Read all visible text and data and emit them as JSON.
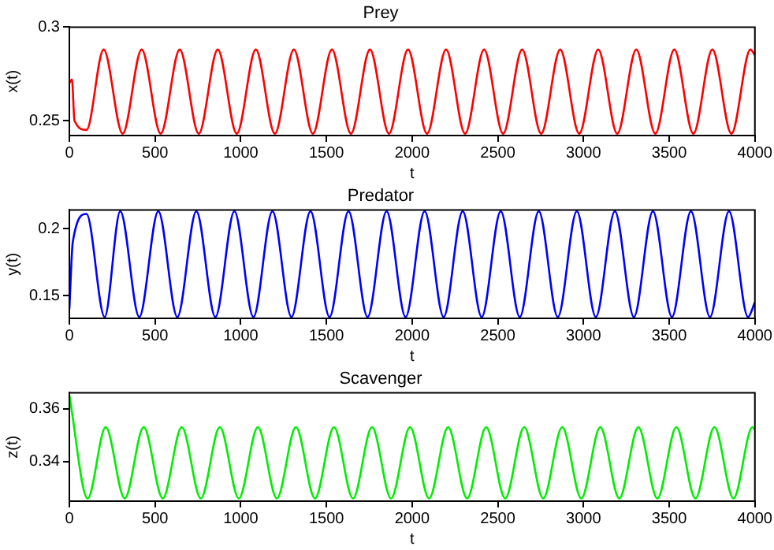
{
  "chart_data": [
    {
      "type": "line",
      "title": "Prey",
      "xlabel": "t",
      "ylabel": "x(t)",
      "marker": "none",
      "xlim": [
        0,
        4000
      ],
      "xticks": [
        0,
        500,
        1000,
        1500,
        2000,
        2500,
        3000,
        3500,
        4000
      ],
      "ylim": [
        0.242,
        0.3
      ],
      "yticks": [
        0.25,
        0.3
      ],
      "x": [
        0,
        15,
        30,
        100,
        200,
        311,
        422,
        533,
        644,
        755,
        866,
        977,
        1088,
        1199,
        1310,
        1421,
        1532,
        1643,
        1754,
        1865,
        1976,
        2087,
        2198,
        2309,
        2420,
        2531,
        2642,
        2753,
        2864,
        2975,
        3086,
        3197,
        3308,
        3419,
        3530,
        3641,
        3752,
        3863,
        3974,
        4000
      ],
      "series": [
        {
          "color": "#ff0000",
          "values": [
            0.27,
            0.272,
            0.25,
            0.245,
            0.288,
            0.243,
            0.288,
            0.243,
            0.288,
            0.243,
            0.288,
            0.243,
            0.288,
            0.243,
            0.288,
            0.243,
            0.288,
            0.243,
            0.288,
            0.243,
            0.288,
            0.243,
            0.288,
            0.243,
            0.288,
            0.243,
            0.288,
            0.243,
            0.288,
            0.243,
            0.288,
            0.243,
            0.288,
            0.243,
            0.288,
            0.243,
            0.288,
            0.243,
            0.288,
            0.285
          ]
        }
      ]
    },
    {
      "type": "line",
      "title": "Predator",
      "xlabel": "t",
      "ylabel": "y(t)",
      "marker": "none",
      "xlim": [
        0,
        4000
      ],
      "xticks": [
        0,
        500,
        1000,
        1500,
        2000,
        2500,
        3000,
        3500,
        4000
      ],
      "ylim": [
        0.133,
        0.214
      ],
      "yticks": [
        0.15,
        0.2
      ],
      "x": [
        0,
        20,
        100,
        206,
        297,
        408,
        519,
        630,
        741,
        852,
        963,
        1074,
        1185,
        1296,
        1407,
        1518,
        1629,
        1740,
        1851,
        1962,
        2073,
        2184,
        2295,
        2406,
        2517,
        2628,
        2739,
        2850,
        2961,
        3072,
        3183,
        3294,
        3405,
        3516,
        3627,
        3738,
        3849,
        3960,
        4000
      ],
      "series": [
        {
          "color": "#0000ff",
          "values": [
            0.14,
            0.19,
            0.211,
            0.134,
            0.213,
            0.134,
            0.213,
            0.134,
            0.213,
            0.134,
            0.213,
            0.134,
            0.213,
            0.134,
            0.213,
            0.134,
            0.213,
            0.134,
            0.213,
            0.134,
            0.213,
            0.134,
            0.213,
            0.134,
            0.213,
            0.134,
            0.213,
            0.134,
            0.213,
            0.134,
            0.213,
            0.134,
            0.213,
            0.134,
            0.213,
            0.134,
            0.213,
            0.134,
            0.145
          ]
        }
      ]
    },
    {
      "type": "line",
      "title": "Scavenger",
      "xlabel": "t",
      "ylabel": "z(t)",
      "marker": "none",
      "xlim": [
        0,
        4000
      ],
      "xticks": [
        0,
        500,
        1000,
        1500,
        2000,
        2500,
        3000,
        3500,
        4000
      ],
      "ylim": [
        0.325,
        0.366
      ],
      "yticks": [
        0.34,
        0.36
      ],
      "x": [
        0,
        107,
        212,
        323,
        434,
        545,
        656,
        767,
        878,
        989,
        1100,
        1211,
        1322,
        1433,
        1544,
        1655,
        1766,
        1877,
        1988,
        2099,
        2210,
        2321,
        2432,
        2543,
        2654,
        2765,
        2876,
        2987,
        3098,
        3209,
        3320,
        3431,
        3542,
        3653,
        3764,
        3875,
        3986,
        4000
      ],
      "series": [
        {
          "color": "#00ee00",
          "values": [
            0.365,
            0.326,
            0.353,
            0.326,
            0.353,
            0.326,
            0.353,
            0.326,
            0.353,
            0.326,
            0.353,
            0.326,
            0.353,
            0.326,
            0.353,
            0.326,
            0.353,
            0.326,
            0.353,
            0.326,
            0.353,
            0.326,
            0.353,
            0.326,
            0.353,
            0.326,
            0.353,
            0.326,
            0.353,
            0.326,
            0.353,
            0.326,
            0.353,
            0.326,
            0.353,
            0.326,
            0.353,
            0.352
          ]
        }
      ]
    }
  ]
}
